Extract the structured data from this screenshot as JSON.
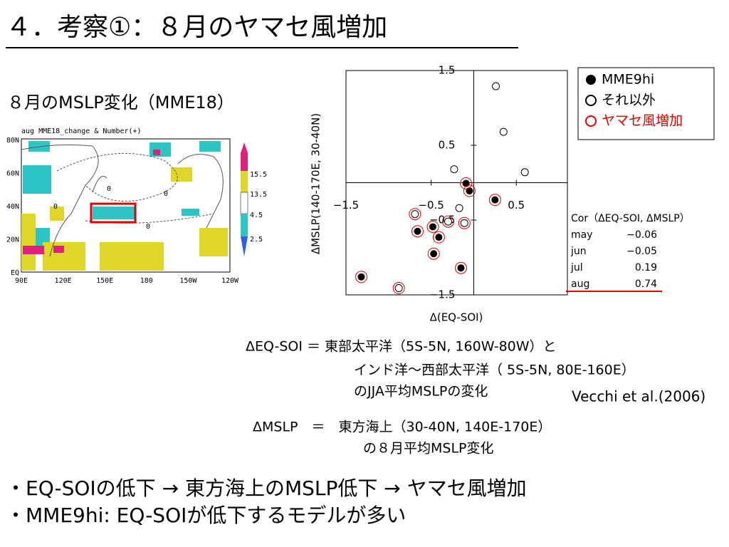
{
  "header": {
    "title": "４．考察①：８月のヤマセ風増加"
  },
  "map": {
    "subtitle": "８月のMSLP変化（MME18）",
    "caption": "aug  MME18_change & Number(+)",
    "lat_labels": [
      "80N",
      "60N",
      "40N",
      "20N",
      "EQ"
    ],
    "lon_labels": [
      "90E",
      "120E",
      "150E",
      "180",
      "150W",
      "120W"
    ],
    "contour_labels": [
      "0",
      "0",
      "0",
      "0"
    ],
    "colorbar_labels": [
      "15.5",
      "13.5",
      "4.5",
      "2.5"
    ]
  },
  "chart_data": {
    "type": "scatter",
    "x_label": "Δ(EQ-SOI)",
    "y_label": "ΔMSLP(140-170E, 30-40N)",
    "xlim": [
      -1.5,
      1.1
    ],
    "ylim": [
      -1.5,
      1.5
    ],
    "xticks": [
      {
        "value": -1.5,
        "label": "−1.5"
      },
      {
        "value": -0.5,
        "label": "−0.5"
      },
      0.5
    ],
    "yticks": [
      1.5,
      0.5,
      {
        "value": -0.5,
        "label": "−0.5"
      },
      {
        "value": -1.5,
        "label": "−1.5"
      }
    ],
    "legend": "top-right-outside",
    "series": [
      {
        "name": "MME9hi",
        "color": "#000000",
        "marker": "filled",
        "x": [
          -0.09,
          -0.05,
          0.25,
          -0.48,
          -0.41,
          -0.66,
          -0.47,
          -0.15,
          -1.32
        ],
        "y": [
          -0.01,
          -0.11,
          -0.23,
          -0.59,
          -0.73,
          -0.65,
          -0.95,
          -1.14,
          -1.26
        ]
      },
      {
        "name": "それ以外",
        "color": "#000000",
        "marker": "open",
        "x": [
          0.26,
          0.35,
          0.6,
          -0.23,
          -0.17,
          -0.69,
          -0.3,
          -0.11,
          -0.88
        ],
        "y": [
          1.29,
          0.68,
          0.14,
          0.18,
          -0.34,
          -0.42,
          -0.52,
          -0.54,
          -1.41
        ]
      },
      {
        "name": "ヤマセ風増加",
        "color": "#e00000",
        "marker": "ring",
        "x": [
          -0.09,
          -0.05,
          0.25,
          -0.48,
          -0.41,
          -0.66,
          -0.47,
          -0.15,
          -1.32,
          -0.69,
          -0.3,
          -0.11,
          -0.88
        ],
        "y": [
          -0.01,
          -0.11,
          -0.23,
          -0.59,
          -0.73,
          -0.65,
          -0.95,
          -1.14,
          -1.26,
          -0.42,
          -0.52,
          -0.54,
          -1.41
        ]
      }
    ]
  },
  "correlation": {
    "header": "Cor（ΔEQ-SOI, ΔMSLP）",
    "rows": [
      [
        "may",
        "−0.06"
      ],
      [
        "jun",
        "−0.05"
      ],
      [
        "jul",
        "0.19"
      ],
      [
        "aug",
        "0.74"
      ]
    ]
  },
  "definitions": {
    "lines": [
      "ΔEQ-SOI ＝ 東部太平洋（5S-5N, 160W-80W）と",
      "インド洋～西部太平洋（ 5S-5N, 80E-160E）",
      "のJJA平均MSLPの変化"
    ],
    "reference": "Vecchi et al.(2006)",
    "mslp_lines": [
      "ΔMSLP　＝　東方海上（30-40N, 140E-170E）",
      "の８月平均MSLP変化"
    ]
  },
  "bullets": [
    "・EQ-SOIの低下 → 東方海上のMSLP低下 → ヤマセ風増加",
    "・MME9hi: EQ-SOIが低下するモデルが多い"
  ]
}
